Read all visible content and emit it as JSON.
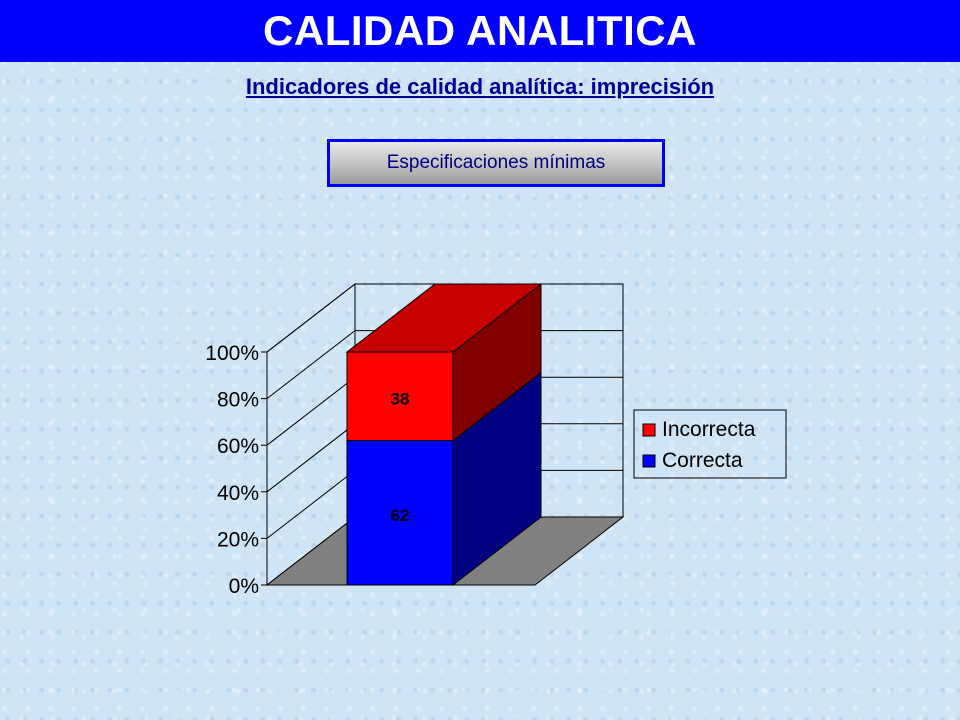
{
  "header": {
    "title": "CALIDAD ANALITICA"
  },
  "subtitle": "Indicadores de calidad analítica: imprecisión",
  "spec_button": {
    "label": "Especificaciones mínimas"
  },
  "colors": {
    "header_bg": "#0000ff",
    "incorrecta": "#ff0000",
    "correcta": "#0000ff",
    "floor": "#808080"
  },
  "chart_data": {
    "type": "bar",
    "stacked": true,
    "three_d": true,
    "categories": [
      ""
    ],
    "series": [
      {
        "name": "Correcta",
        "values": [
          62
        ],
        "color": "#0000ff"
      },
      {
        "name": "Incorrecta",
        "values": [
          38
        ],
        "color": "#ff0000"
      }
    ],
    "ylim": [
      0,
      100
    ],
    "yticks": [
      "0%",
      "20%",
      "40%",
      "60%",
      "80%",
      "100%"
    ],
    "legend": {
      "position": "right",
      "entries": [
        "Incorrecta",
        "Correcta"
      ]
    },
    "grid": true
  }
}
